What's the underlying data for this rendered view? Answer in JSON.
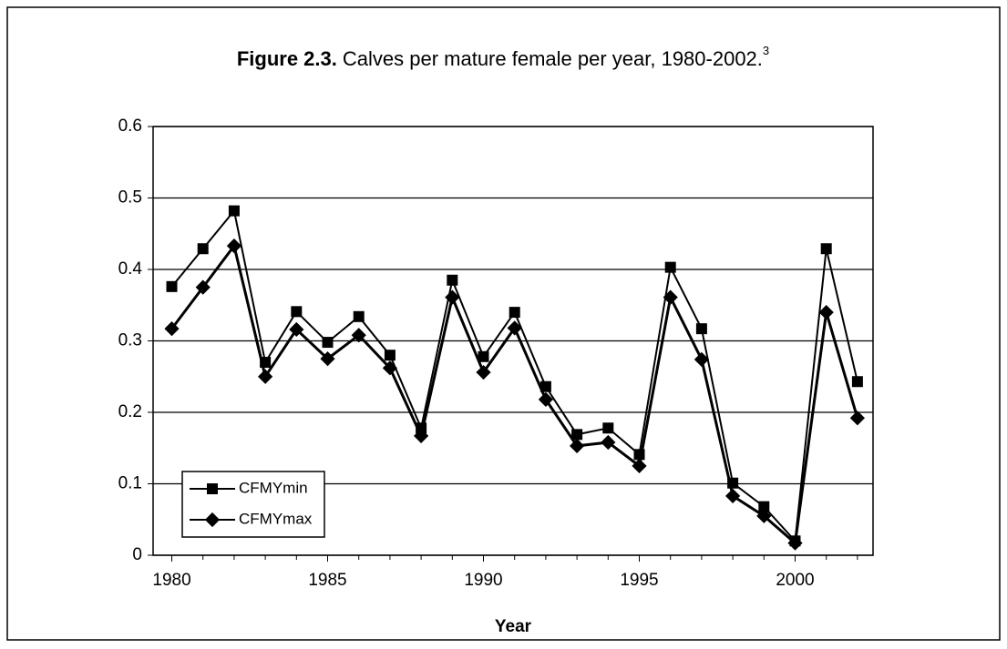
{
  "chart_data": {
    "type": "line",
    "title_label": "Figure 2.3.",
    "title": "Calves per mature female per year, 1980-2002.",
    "title_footnote": "3",
    "x_label": "Year",
    "x": [
      1980,
      1981,
      1982,
      1983,
      1984,
      1985,
      1986,
      1987,
      1988,
      1989,
      1990,
      1991,
      1992,
      1993,
      1994,
      1995,
      1996,
      1997,
      1998,
      1999,
      2000,
      2001,
      2002
    ],
    "series": [
      {
        "name": "CFMYmin",
        "color": "#000000",
        "marker": "square",
        "values": [
          0.376,
          0.429,
          0.482,
          0.27,
          0.341,
          0.298,
          0.334,
          0.28,
          0.178,
          0.385,
          0.278,
          0.34,
          0.236,
          0.169,
          0.178,
          0.141,
          0.403,
          0.317,
          0.101,
          0.068,
          0.02,
          0.429,
          0.243
        ]
      },
      {
        "name": "CFMYmax",
        "color": "#000000",
        "marker": "diamond",
        "values": [
          0.317,
          0.375,
          0.433,
          0.25,
          0.316,
          0.275,
          0.308,
          0.262,
          0.167,
          0.361,
          0.256,
          0.318,
          0.218,
          0.153,
          0.158,
          0.125,
          0.361,
          0.274,
          0.083,
          0.055,
          0.017,
          0.34,
          0.192
        ]
      }
    ],
    "xlim": [
      1979.4,
      2002.5
    ],
    "xticks": [
      1980,
      1985,
      1990,
      1995,
      2000
    ],
    "ylim": [
      0,
      0.6
    ],
    "yticks": [
      0,
      0.1,
      0.2,
      0.3,
      0.4,
      0.5,
      0.6
    ],
    "grid": true,
    "legend": "lower left"
  }
}
